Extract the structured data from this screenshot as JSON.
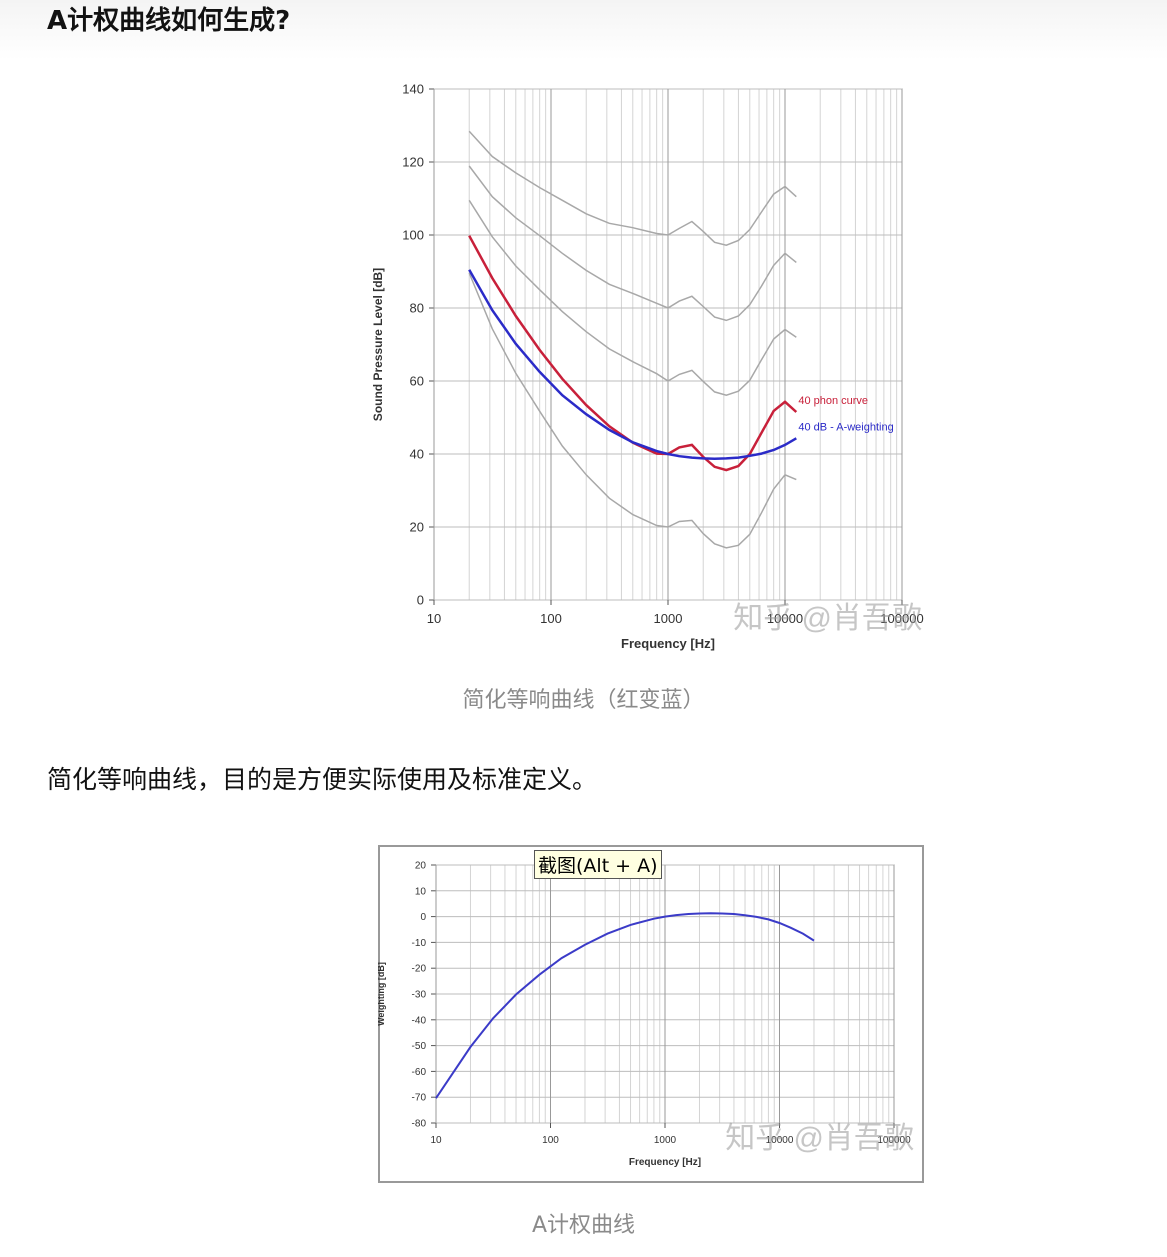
{
  "heading": "A计权曲线如何生成?",
  "captions": [
    "简化等响曲线（红变蓝）",
    "A计权曲线"
  ],
  "paragraph": "简化等响曲线，目的是方便实际使用及标准定义。",
  "tooltip": "截图(Alt + A)",
  "chart_data": [
    {
      "type": "line",
      "x_label": "Frequency [Hz]",
      "y_label": "Sound Pressure Level [dB]",
      "watermark": "知乎 @肖吾歌",
      "log_x": true,
      "grid": true,
      "minor_grid": true,
      "xlim": [
        10,
        100000
      ],
      "xticks": [
        10,
        100,
        1000,
        10000,
        100000
      ],
      "ylim": [
        0,
        140
      ],
      "yticks": [
        0,
        20,
        40,
        60,
        80,
        100,
        120,
        140
      ],
      "x": [
        20,
        31.5,
        50,
        80,
        125,
        200,
        315,
        500,
        800,
        1000,
        1250,
        1600,
        2000,
        2500,
        3150,
        4000,
        5000,
        6300,
        8000,
        10000,
        12500
      ],
      "series": [
        {
          "color": "#a8a8a8",
          "values": [
            89.6,
            74.3,
            62.1,
            51.7,
            42.2,
            34.3,
            27.9,
            23.4,
            20.4,
            20,
            21.5,
            21.8,
            18.2,
            15.4,
            14.3,
            15.0,
            18.0,
            23.9,
            30.4,
            34.3,
            33.0
          ]
        },
        {
          "color": "#a8a8a8",
          "values": [
            109.5,
            99.5,
            91.5,
            85.0,
            79.0,
            73.5,
            68.8,
            65.3,
            62.0,
            60,
            61.8,
            62.9,
            59.9,
            57.0,
            56.1,
            57.2,
            60.2,
            65.8,
            71.5,
            74.1,
            72.0
          ]
        },
        {
          "color": "#a8a8a8",
          "values": [
            118.9,
            110.5,
            104.7,
            99.8,
            95.0,
            90.3,
            86.5,
            84.0,
            81.3,
            80,
            81.9,
            83.2,
            80.4,
            77.5,
            76.6,
            77.8,
            80.9,
            86.0,
            91.7,
            95.0,
            92.5
          ]
        },
        {
          "color": "#a8a8a8",
          "values": [
            128.4,
            121.5,
            117.0,
            113.0,
            109.5,
            105.8,
            103.2,
            102.0,
            100.4,
            100,
            101.8,
            103.7,
            101.0,
            98.0,
            97.2,
            98.5,
            101.5,
            106.3,
            111.2,
            113.3,
            110.5
          ]
        },
        {
          "name": "40 phon curve",
          "color": "#c8203a",
          "values": [
            99.8,
            88.2,
            77.8,
            68.5,
            60.6,
            53.4,
            47.6,
            43.1,
            40.1,
            40,
            41.8,
            42.5,
            39.2,
            36.5,
            35.6,
            36.7,
            40.0,
            45.8,
            51.8,
            54.3,
            51.5
          ]
        },
        {
          "name": "40 dB - A-weighting",
          "color": "#2b2bc8",
          "values": [
            90.5,
            79.4,
            70.2,
            62.5,
            56.1,
            50.9,
            46.6,
            43.2,
            40.8,
            40,
            39.4,
            39.0,
            38.8,
            38.7,
            38.8,
            39.0,
            39.5,
            40.1,
            41.1,
            42.5,
            44.3
          ]
        }
      ]
    },
    {
      "type": "line",
      "x_label": "Frequency [Hz]",
      "y_label": "Weighting [dB]",
      "watermark": "知乎 @肖吾歌",
      "log_x": true,
      "grid": true,
      "minor_grid": true,
      "xlim": [
        10,
        100000
      ],
      "xticks": [
        10,
        100,
        1000,
        10000,
        100000
      ],
      "ylim": [
        -80,
        20
      ],
      "yticks": [
        -80,
        -70,
        -60,
        -50,
        -40,
        -30,
        -20,
        -10,
        0,
        10,
        20
      ],
      "x": [
        10,
        20,
        31.5,
        50,
        80,
        125,
        200,
        315,
        500,
        800,
        1000,
        1250,
        1600,
        2000,
        2500,
        3150,
        4000,
        5000,
        6300,
        8000,
        10000,
        12500,
        16000,
        20000
      ],
      "series": [
        {
          "color": "#3b3bc8",
          "values": [
            -70.4,
            -50.5,
            -39.4,
            -30.2,
            -22.5,
            -16.1,
            -10.9,
            -6.6,
            -3.2,
            -0.8,
            0,
            0.6,
            1.0,
            1.2,
            1.3,
            1.2,
            1.0,
            0.5,
            -0.1,
            -1.1,
            -2.5,
            -4.3,
            -6.6,
            -9.3
          ]
        }
      ]
    }
  ]
}
